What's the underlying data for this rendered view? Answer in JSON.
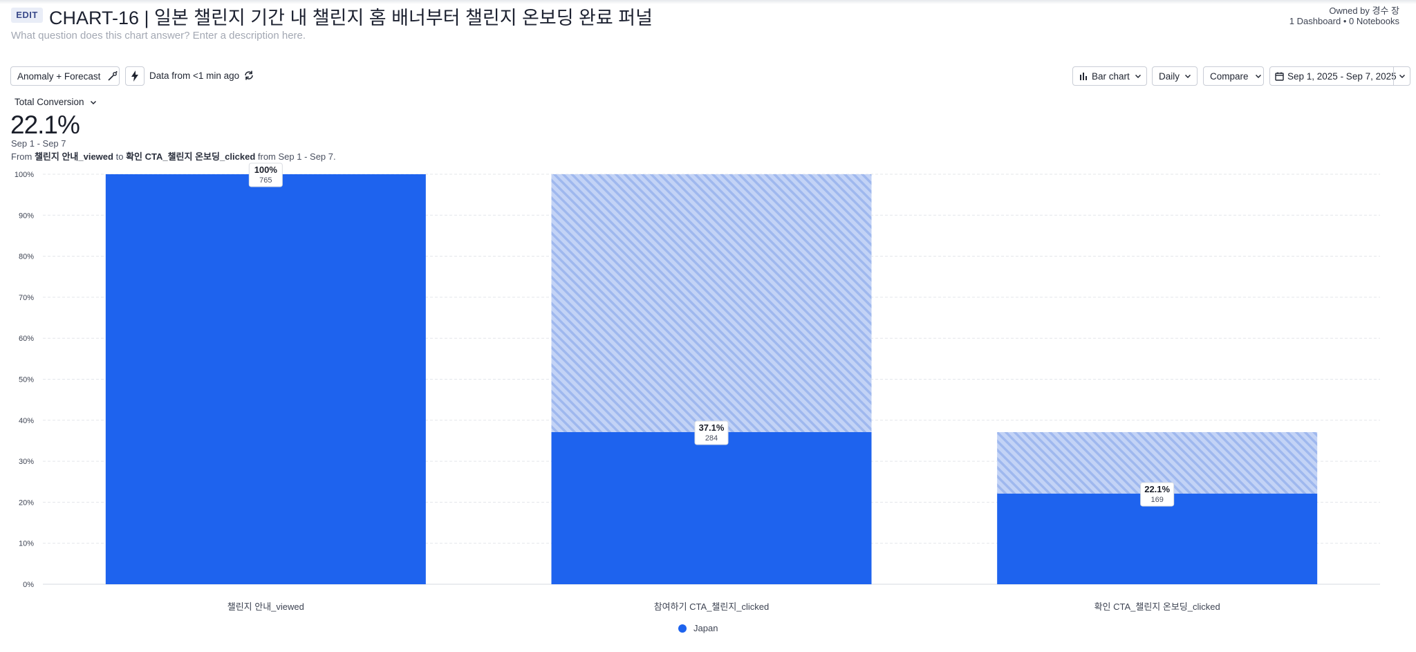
{
  "header": {
    "edit_label": "EDIT",
    "title": "CHART-16 | 일본 챌린지 기간 내 챌린지 홈 배너부터 챌린지 온보딩 완료 퍼널",
    "description_placeholder": "What question does this chart answer? Enter a description here.",
    "owned_by": "Owned by 경수 장",
    "counts": "1 Dashboard • 0 Notebooks"
  },
  "toolbar": {
    "anomaly_label": "Anomaly + Forecast",
    "data_freshness": "Data from <1 min ago",
    "chart_type_label": "Bar chart",
    "interval_label": "Daily",
    "compare_label": "Compare",
    "date_range_label": "Sep 1, 2025 - Sep 7, 2025"
  },
  "summary": {
    "metric_label": "Total Conversion",
    "value": "22.1%",
    "date_range": "Sep 1 - Sep 7",
    "from_prefix": "From",
    "from_event": "챌린지 안내_viewed",
    "to_word": "to",
    "to_event": "확인 CTA_챌린지 온보딩_clicked",
    "period_suffix": "from Sep 1 - Sep 7."
  },
  "colors": {
    "bar": "#1e63ee",
    "dropoff": "#c3d3f6",
    "stripe": "#9fb8ee"
  },
  "chart_data": {
    "type": "bar",
    "categories": [
      "챌린지 안내_viewed",
      "참여하기 CTA_챌린지_clicked",
      "확인 CTA_챌린지 온보딩_clicked"
    ],
    "series": [
      {
        "name": "Japan",
        "values": [
          100,
          37.1,
          22.1
        ],
        "counts": [
          765,
          284,
          169
        ]
      }
    ],
    "data_labels": [
      {
        "pct": "100%",
        "count": "765"
      },
      {
        "pct": "37.1%",
        "count": "284"
      },
      {
        "pct": "22.1%",
        "count": "169"
      }
    ],
    "y_ticks": [
      "0%",
      "10%",
      "20%",
      "30%",
      "40%",
      "50%",
      "60%",
      "70%",
      "80%",
      "90%",
      "100%"
    ],
    "ylim": [
      0,
      100
    ],
    "grid": true,
    "legend_position": "bottom-center"
  }
}
